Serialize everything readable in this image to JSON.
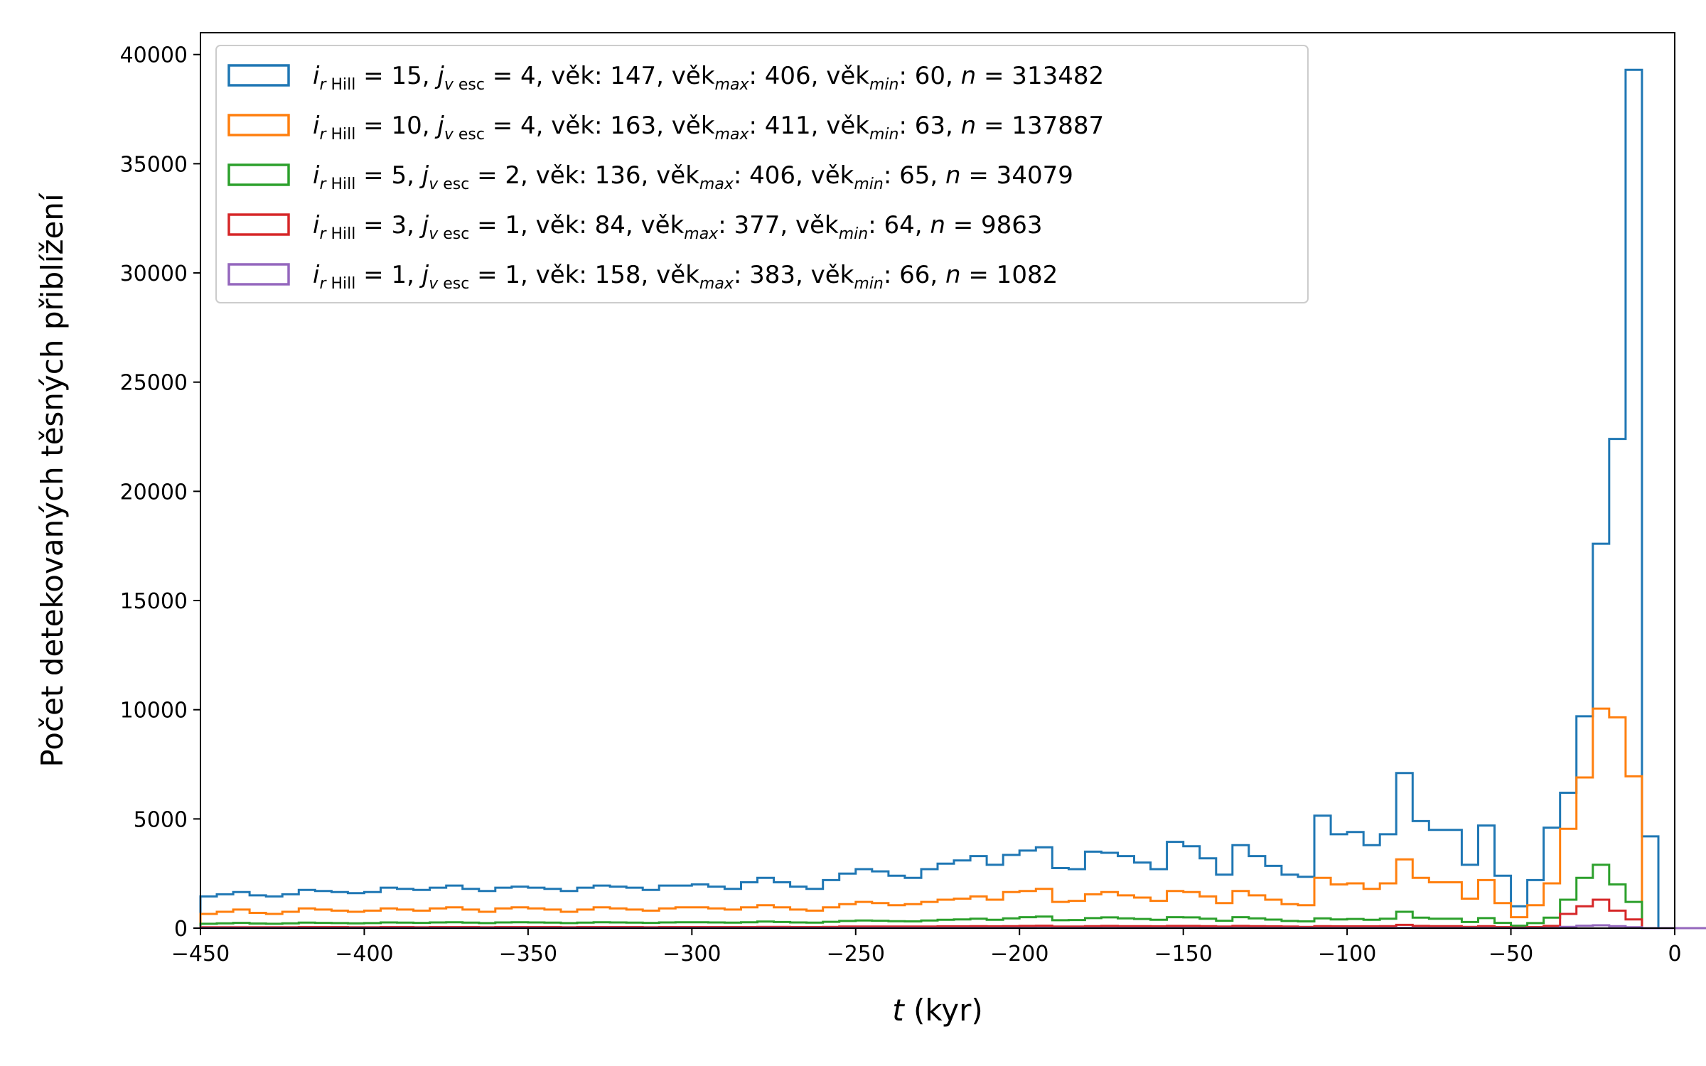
{
  "chart_data": {
    "type": "histogram",
    "xlabel": {
      "var": "t",
      "unit": " (kyr)"
    },
    "ylabel": "Počet detekovaných těsných přiblížení",
    "xlim": [
      -450,
      0
    ],
    "ylim": [
      0,
      41000
    ],
    "xticks": [
      -450,
      -400,
      -350,
      -300,
      -250,
      -200,
      -150,
      -100,
      -50,
      0
    ],
    "yticks": [
      0,
      5000,
      10000,
      15000,
      20000,
      25000,
      30000,
      35000,
      40000
    ],
    "legend_position": "upper left",
    "bin_width": 5,
    "bin_start": -450,
    "series": [
      {
        "color": "#1f77b4",
        "legend": {
          "i": "15",
          "j": "4",
          "vek": "147",
          "vek_max": "406",
          "vek_min": "60",
          "n": "313482"
        },
        "values": [
          1450,
          1550,
          1650,
          1500,
          1450,
          1550,
          1750,
          1700,
          1650,
          1600,
          1650,
          1850,
          1800,
          1750,
          1850,
          1950,
          1800,
          1700,
          1850,
          1900,
          1850,
          1800,
          1700,
          1850,
          1950,
          1900,
          1850,
          1750,
          1950,
          1950,
          2000,
          1900,
          1800,
          2100,
          2300,
          2100,
          1900,
          1800,
          2200,
          2500,
          2700,
          2600,
          2400,
          2300,
          2700,
          2950,
          3100,
          3300,
          2900,
          3350,
          3550,
          3700,
          2750,
          2700,
          3500,
          3450,
          3300,
          3000,
          2700,
          3950,
          3750,
          3200,
          2450,
          3800,
          3300,
          2850,
          2450,
          2350,
          5150,
          4300,
          4400,
          3800,
          4300,
          7100,
          4900,
          4500,
          4500,
          2900,
          4700,
          2400,
          1000,
          2200,
          4600,
          6200,
          9700,
          17600,
          22400,
          39300,
          4200,
          0,
          0,
          0,
          0,
          0,
          0,
          0,
          0,
          0,
          0,
          0
        ]
      },
      {
        "color": "#ff7f0e",
        "legend": {
          "i": "10",
          "j": "4",
          "vek": "163",
          "vek_max": "411",
          "vek_min": "63",
          "n": "137887"
        },
        "values": [
          650,
          750,
          850,
          700,
          650,
          750,
          900,
          850,
          800,
          750,
          800,
          900,
          850,
          800,
          900,
          950,
          850,
          750,
          900,
          950,
          900,
          850,
          750,
          850,
          950,
          900,
          850,
          800,
          900,
          950,
          950,
          900,
          850,
          950,
          1050,
          950,
          850,
          800,
          950,
          1100,
          1200,
          1150,
          1050,
          1100,
          1200,
          1300,
          1350,
          1450,
          1300,
          1650,
          1700,
          1800,
          1200,
          1250,
          1550,
          1650,
          1500,
          1400,
          1250,
          1700,
          1650,
          1450,
          1150,
          1700,
          1500,
          1300,
          1100,
          1050,
          2300,
          2000,
          2050,
          1800,
          2050,
          3150,
          2300,
          2100,
          2100,
          1350,
          2200,
          1150,
          500,
          1050,
          2050,
          4550,
          6900,
          10050,
          9650,
          6950,
          0,
          0,
          0,
          0,
          0,
          0,
          0,
          0,
          0,
          0,
          0,
          0
        ]
      },
      {
        "color": "#2ca02c",
        "legend": {
          "i": " 5",
          "j": "2",
          "vek": "136",
          "vek_max": "406",
          "vek_min": "65",
          "n": "34079"
        },
        "values": [
          200,
          220,
          240,
          210,
          200,
          220,
          250,
          240,
          230,
          220,
          230,
          260,
          250,
          240,
          260,
          270,
          250,
          230,
          260,
          270,
          260,
          250,
          230,
          250,
          270,
          260,
          250,
          240,
          260,
          270,
          270,
          260,
          250,
          270,
          300,
          280,
          260,
          250,
          290,
          330,
          350,
          340,
          320,
          310,
          350,
          380,
          400,
          430,
          380,
          450,
          500,
          530,
          360,
          370,
          460,
          490,
          450,
          420,
          380,
          500,
          490,
          430,
          340,
          500,
          450,
          390,
          330,
          310,
          450,
          400,
          420,
          380,
          430,
          750,
          480,
          430,
          430,
          280,
          460,
          240,
          110,
          230,
          480,
          1300,
          2300,
          2900,
          2000,
          1200,
          0,
          0,
          0,
          0,
          0,
          0,
          0,
          0,
          0,
          0,
          0,
          0
        ]
      },
      {
        "color": "#d62728",
        "legend": {
          "i": " 3",
          "j": "1",
          "vek": " 84",
          "vek_max": "377",
          "vek_min": "64",
          "n": "9863"
        },
        "values": [
          40,
          40,
          40,
          40,
          40,
          40,
          50,
          50,
          50,
          40,
          40,
          50,
          50,
          40,
          50,
          50,
          50,
          40,
          50,
          50,
          50,
          50,
          40,
          50,
          50,
          50,
          50,
          40,
          50,
          50,
          50,
          50,
          50,
          50,
          60,
          60,
          50,
          50,
          60,
          70,
          70,
          70,
          70,
          70,
          70,
          80,
          80,
          90,
          80,
          90,
          100,
          110,
          70,
          70,
          90,
          100,
          90,
          90,
          80,
          100,
          100,
          90,
          70,
          100,
          90,
          80,
          70,
          60,
          90,
          80,
          80,
          80,
          90,
          150,
          100,
          90,
          90,
          60,
          90,
          50,
          20,
          50,
          100,
          650,
          1000,
          1300,
          800,
          400,
          0,
          0,
          0,
          0,
          0,
          0,
          0,
          0,
          0,
          0,
          0,
          0
        ]
      },
      {
        "color": "#9467bd",
        "legend": {
          "i": " 1",
          "j": "1",
          "vek": "158",
          "vek_max": "383",
          "vek_min": "66",
          "n": "1082"
        },
        "values": [
          5,
          5,
          5,
          5,
          5,
          5,
          5,
          5,
          5,
          5,
          5,
          5,
          5,
          5,
          5,
          5,
          5,
          5,
          5,
          5,
          5,
          5,
          5,
          5,
          5,
          5,
          5,
          5,
          5,
          5,
          5,
          5,
          5,
          5,
          5,
          5,
          5,
          5,
          5,
          8,
          8,
          8,
          8,
          8,
          8,
          10,
          10,
          10,
          10,
          10,
          10,
          12,
          8,
          8,
          10,
          10,
          10,
          10,
          8,
          10,
          10,
          10,
          8,
          10,
          10,
          8,
          8,
          6,
          10,
          8,
          8,
          8,
          10,
          15,
          10,
          10,
          10,
          6,
          10,
          5,
          2,
          5,
          10,
          60,
          110,
          130,
          90,
          40,
          0,
          0,
          0,
          0,
          0,
          0,
          0,
          0,
          0,
          0,
          0,
          0
        ]
      }
    ]
  }
}
